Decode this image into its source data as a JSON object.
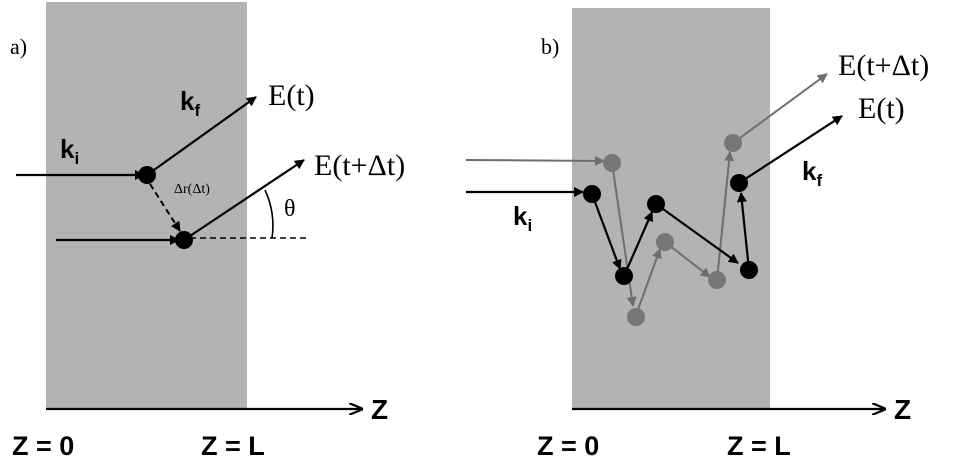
{
  "panel_a": {
    "panel_label": "a)",
    "wave_in": "k",
    "wave_in_sub": "i",
    "wave_out": "k",
    "wave_out_sub": "f",
    "field_t": "E(t)",
    "field_t_dt": "E(t+Δt)",
    "displacement": "Δr(Δt)",
    "angle": "θ",
    "axis": "Z",
    "boundary_left": "Z = 0",
    "boundary_right": "Z = L"
  },
  "panel_b": {
    "panel_label": "b)",
    "wave_in": "k",
    "wave_in_sub": "i",
    "wave_out": "k",
    "wave_out_sub": "f",
    "field_t_dt": "E(t+Δt)",
    "field_t": "E(t)",
    "axis": "Z",
    "boundary_left": "Z = 0",
    "boundary_right": "Z = L"
  },
  "colors": {
    "medium": "#b3b3b3",
    "path_t": "#000000",
    "path_t_dt": "#6e6e6e",
    "scatterer_t_dt": "#777777"
  }
}
